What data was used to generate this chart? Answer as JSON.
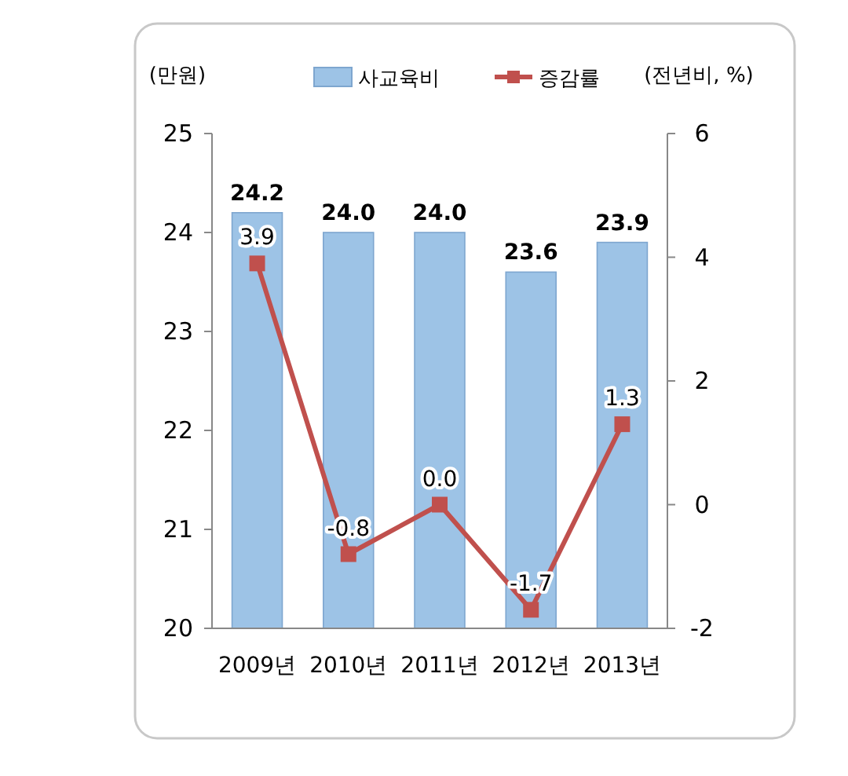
{
  "chart_data": {
    "type": "bar",
    "ylabel": "(만원)",
    "y2label": "(전년비, %)",
    "categories": [
      "2009년",
      "2010년",
      "2011년",
      "2012년",
      "2013년"
    ],
    "series": [
      {
        "name": "사교육비",
        "color": "#9dc3e6",
        "values": [
          24.2,
          24.0,
          24.0,
          23.6,
          23.9
        ],
        "value_labels": [
          "24.2",
          "24.0",
          "24.0",
          "23.6",
          "23.9"
        ]
      },
      {
        "name": "증감률",
        "type": "line",
        "axis": "y2",
        "color": "#c0504d",
        "values": [
          3.9,
          -0.8,
          0.0,
          -1.7,
          1.3
        ],
        "value_labels": [
          "3.9",
          "-0.8",
          "0.0",
          "-1.7",
          "1.3"
        ]
      }
    ],
    "ylim": [
      20,
      25
    ],
    "yticks": [
      20,
      21,
      22,
      23,
      24,
      25
    ],
    "y2lim": [
      -2,
      6
    ],
    "y2ticks": [
      -2,
      0,
      2,
      4,
      6
    ],
    "legend": "top",
    "grid": false,
    "marker": "square",
    "line_style": "solid"
  }
}
